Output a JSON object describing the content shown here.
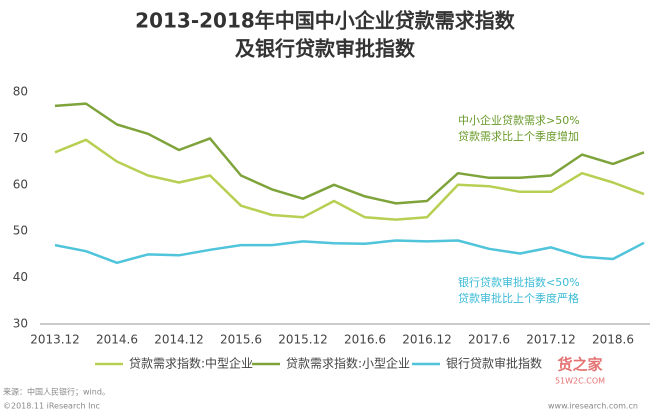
{
  "chart_data": {
    "type": "line",
    "title": [
      "2013-2018年中国中小企业贷款需求指数",
      "及银行贷款审批指数"
    ],
    "categories": [
      "2013.12",
      null,
      "2014.6",
      null,
      "2014.12",
      null,
      "2015.6",
      null,
      "2015.12",
      null,
      "2016.6",
      null,
      "2016.12",
      null,
      "2017.6",
      null,
      "2017.12",
      null,
      "2018.6",
      null
    ],
    "series": [
      {
        "name": "贷款需求指数:中型企业",
        "color": "#b7cf52",
        "values": [
          67,
          69.7,
          65,
          62,
          60.5,
          62,
          55.5,
          53.5,
          53,
          56.5,
          53,
          52.5,
          53,
          60,
          59.7,
          58.5,
          58.5,
          62.5,
          60.5,
          58
        ]
      },
      {
        "name": "贷款需求指数:小型企业",
        "color": "#7ea33b",
        "values": [
          77,
          77.5,
          73,
          71,
          67.5,
          70,
          62,
          59,
          57,
          60,
          57.5,
          56,
          56.5,
          62.5,
          61.5,
          61.5,
          62,
          66.5,
          64.5,
          67
        ]
      },
      {
        "name": "银行贷款审批指数",
        "color": "#4fc4da",
        "values": [
          47,
          45.7,
          43.2,
          45,
          44.8,
          46,
          47,
          47,
          47.8,
          47.4,
          47.3,
          48,
          47.8,
          48,
          46.2,
          45.2,
          46.5,
          44.5,
          44,
          47.5
        ]
      }
    ],
    "ylim": [
      30,
      80
    ],
    "yticks": [
      30,
      40,
      50,
      60,
      70,
      80
    ],
    "grid": false,
    "annotations": [
      {
        "lines": [
          "中小企业贷款需求>50%",
          "贷款需求比上个季度增加"
        ],
        "color": "#6a9a2a"
      },
      {
        "lines": [
          "银行贷款审批指数<50%",
          "贷款审批比上个季度严格"
        ],
        "color": "#3bbbd6"
      }
    ],
    "source": "来源：中国人民银行；wind。",
    "copyright": "©2018.11 iResearch Inc",
    "website": "www.iresearch.com.cn",
    "watermark": [
      "货之家",
      "51W2C.COM"
    ]
  }
}
